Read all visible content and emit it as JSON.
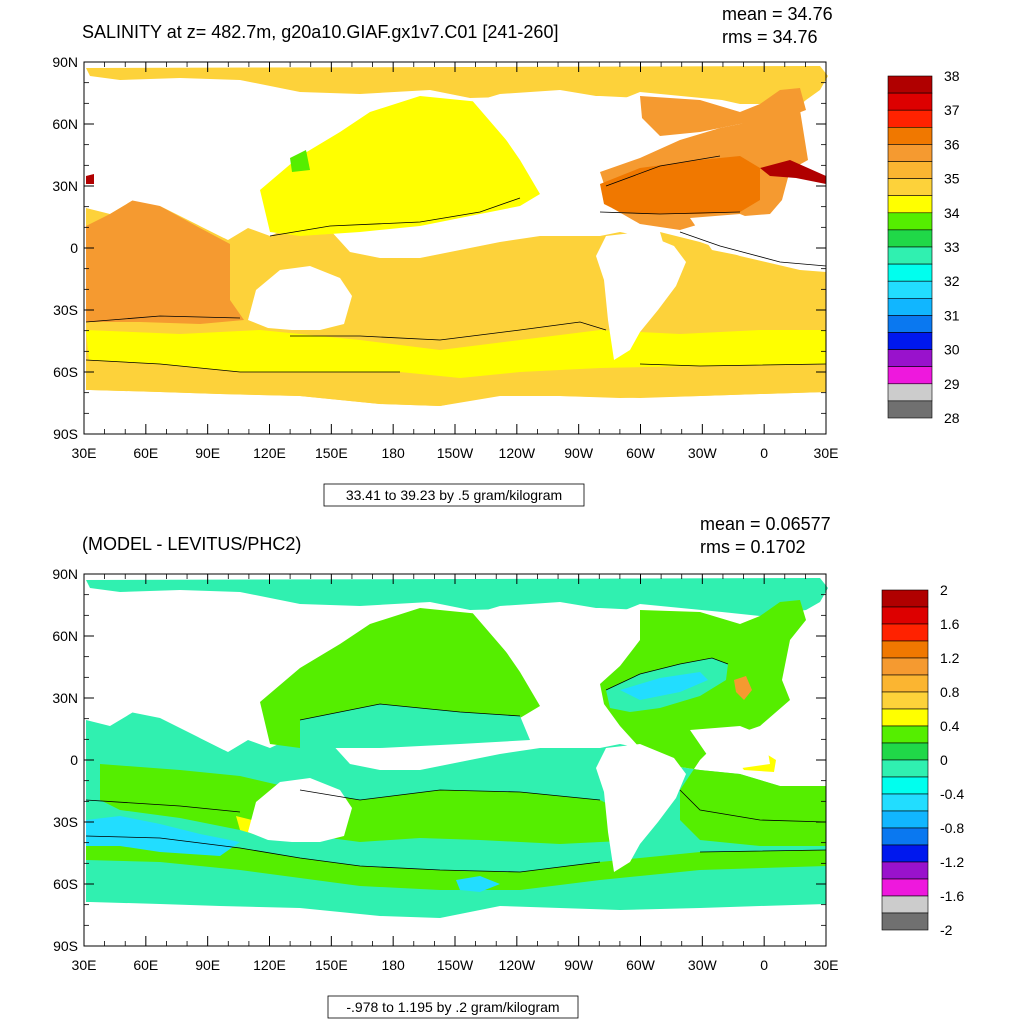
{
  "top_panel": {
    "title": "SALINITY at z= 482.7m, g20a10.GIAF.gx1v7.C01 [241-260]",
    "mean_label": "mean = 34.76",
    "rms_label": "rms = 34.76",
    "contour_info": "33.41 to 39.23 by .5 gram/kilogram",
    "y_ticks": [
      "90N",
      "60N",
      "30N",
      "0",
      "30S",
      "60S",
      "90S"
    ],
    "x_ticks": [
      "30E",
      "60E",
      "90E",
      "120E",
      "150E",
      "180",
      "150W",
      "120W",
      "90W",
      "60W",
      "30W",
      "0",
      "30E"
    ],
    "colorbar": {
      "labels": [
        "38",
        "37",
        "36",
        "35",
        "34",
        "33",
        "32",
        "31",
        "30",
        "29",
        "28"
      ],
      "colors": [
        "#b00000",
        "#dd0000",
        "#ff2200",
        "#f07800",
        "#f59a30",
        "#fbb531",
        "#fdd23a",
        "#ffff00",
        "#55ee00",
        "#20d848",
        "#30f0b0",
        "#00ffee",
        "#22ddff",
        "#11b6ff",
        "#0a78f0",
        "#0018ee",
        "#9912cc",
        "#ee18dd",
        "#cccccc",
        "#707070"
      ]
    }
  },
  "bottom_panel": {
    "title": "(MODEL - LEVITUS/PHC2)",
    "mean_label": "mean = 0.06577",
    "rms_label": "rms = 0.1702",
    "contour_info": "-.978 to 1.195 by .2 gram/kilogram",
    "y_ticks": [
      "90N",
      "60N",
      "30N",
      "0",
      "30S",
      "60S",
      "90S"
    ],
    "x_ticks": [
      "30E",
      "60E",
      "90E",
      "120E",
      "150E",
      "180",
      "150W",
      "120W",
      "90W",
      "60W",
      "30W",
      "0",
      "30E"
    ],
    "colorbar": {
      "labels": [
        "2",
        "1.6",
        "1.2",
        "0.8",
        "0.4",
        "0",
        "-0.4",
        "-0.8",
        "-1.2",
        "-1.6",
        "-2"
      ],
      "colors": [
        "#b00000",
        "#dd0000",
        "#ff2200",
        "#f07800",
        "#f59a30",
        "#fbb531",
        "#fdd23a",
        "#ffff00",
        "#55ee00",
        "#20d848",
        "#30f0b0",
        "#00ffee",
        "#22ddff",
        "#11b6ff",
        "#0a78f0",
        "#0018ee",
        "#9912cc",
        "#ee18dd",
        "#cccccc",
        "#707070"
      ]
    }
  },
  "colors": {
    "land": "#ffffff",
    "top_north_pacific": "#ffff00",
    "top_ocean": "#fdd23a",
    "top_atlantic": "#f59a30",
    "top_mediterranean": "#b00000",
    "diff_background": "#30f0b0",
    "diff_positive": "#55ee00",
    "diff_negative": "#22ddff"
  }
}
